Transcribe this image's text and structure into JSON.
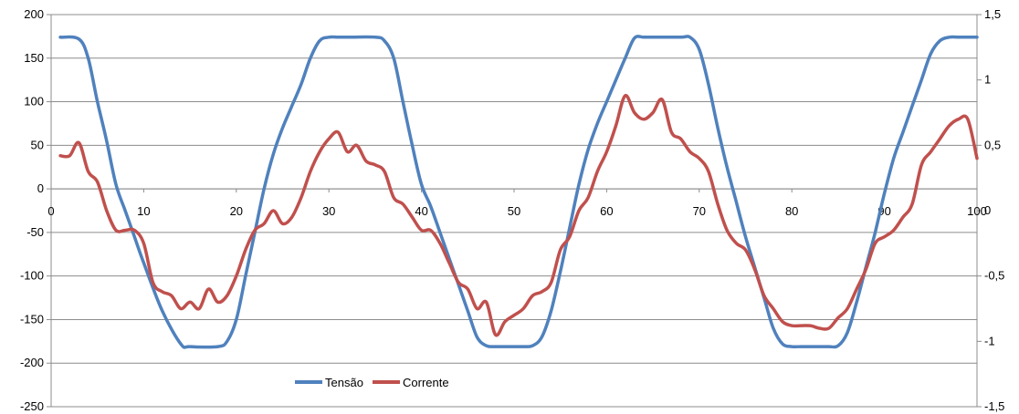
{
  "chart_data": {
    "type": "line",
    "title": "",
    "xlabel": "",
    "ylabel": "",
    "grid": true,
    "legend_position": "bottom-center",
    "x_ticks": [
      "0",
      "10",
      "20",
      "30",
      "40",
      "50",
      "60",
      "70",
      "80",
      "90",
      "100"
    ],
    "y_left_ticks": [
      "200",
      "150",
      "100",
      "50",
      "0",
      "-50",
      "-100",
      "-150",
      "-200",
      "-250"
    ],
    "y_right_ticks": [
      "1,5",
      "1",
      "0,5",
      "0",
      "-0,5",
      "-1",
      "-1,5"
    ],
    "xlim": [
      0,
      100
    ],
    "ylim_left": [
      -250,
      200
    ],
    "ylim_right": [
      -1.5,
      1.5
    ],
    "series": [
      {
        "name": "Tensão",
        "axis": "left",
        "color": "#4F81BD",
        "x": [
          1,
          3,
          4,
          5,
          6,
          7,
          8,
          9,
          10,
          12,
          14,
          15,
          18,
          19,
          20,
          21,
          22,
          23,
          24,
          25,
          26,
          27,
          28,
          29,
          30,
          31,
          32,
          35,
          36,
          37,
          38,
          39,
          40,
          41,
          42,
          43,
          44,
          45,
          46,
          47,
          48,
          49,
          50,
          51,
          52,
          53,
          54,
          55,
          56,
          57,
          58,
          59,
          60,
          61,
          62,
          63,
          64,
          65,
          68,
          69,
          70,
          71,
          72,
          73,
          74,
          75,
          76,
          77,
          78,
          79,
          80,
          81,
          82,
          83,
          84,
          85,
          86,
          87,
          88,
          89,
          90,
          91,
          92,
          93,
          94,
          95,
          96,
          97,
          98,
          99,
          100
        ],
        "values": [
          174,
          172,
          150,
          100,
          55,
          5,
          -25,
          -55,
          -85,
          -140,
          -178,
          -181,
          -181,
          -175,
          -150,
          -100,
          -50,
          0,
          40,
          70,
          95,
          120,
          150,
          170,
          174,
          174,
          174,
          174,
          170,
          150,
          100,
          50,
          5,
          -20,
          -50,
          -80,
          -110,
          -140,
          -170,
          -180,
          -181,
          -181,
          -181,
          -181,
          -180,
          -170,
          -140,
          -95,
          -45,
          5,
          45,
          75,
          100,
          125,
          150,
          173,
          174,
          174,
          174,
          174,
          160,
          120,
          70,
          25,
          -15,
          -55,
          -90,
          -125,
          -160,
          -178,
          -181,
          -181,
          -181,
          -181,
          -181,
          -180,
          -165,
          -130,
          -90,
          -50,
          -5,
          35,
          65,
          95,
          125,
          155,
          170,
          174,
          174,
          174,
          174
        ]
      },
      {
        "name": "Corrente",
        "axis": "right",
        "color": "#C0504D",
        "x": [
          1,
          2,
          3,
          4,
          5,
          6,
          7,
          8,
          9,
          10,
          11,
          12,
          13,
          14,
          15,
          16,
          17,
          18,
          19,
          20,
          21,
          22,
          23,
          24,
          25,
          26,
          27,
          28,
          29,
          30,
          31,
          32,
          33,
          34,
          35,
          36,
          37,
          38,
          39,
          40,
          41,
          42,
          43,
          44,
          45,
          46,
          47,
          48,
          49,
          50,
          51,
          52,
          53,
          54,
          55,
          56,
          57,
          58,
          59,
          60,
          61,
          62,
          63,
          64,
          65,
          66,
          67,
          68,
          69,
          70,
          71,
          72,
          73,
          74,
          75,
          76,
          77,
          78,
          79,
          80,
          81,
          82,
          83,
          84,
          85,
          86,
          87,
          88,
          89,
          90,
          91,
          92,
          93,
          94,
          95,
          96,
          97,
          98,
          99,
          100
        ],
        "values": [
          0.42,
          0.42,
          0.52,
          0.3,
          0.22,
          0.0,
          -0.15,
          -0.15,
          -0.15,
          -0.25,
          -0.55,
          -0.62,
          -0.65,
          -0.75,
          -0.7,
          -0.75,
          -0.6,
          -0.7,
          -0.65,
          -0.5,
          -0.3,
          -0.15,
          -0.1,
          0.0,
          -0.1,
          -0.05,
          0.1,
          0.3,
          0.45,
          0.55,
          0.6,
          0.45,
          0.5,
          0.38,
          0.35,
          0.3,
          0.1,
          0.05,
          -0.05,
          -0.15,
          -0.15,
          -0.25,
          -0.4,
          -0.55,
          -0.6,
          -0.75,
          -0.7,
          -0.95,
          -0.85,
          -0.8,
          -0.75,
          -0.65,
          -0.62,
          -0.55,
          -0.3,
          -0.2,
          0.0,
          0.1,
          0.3,
          0.45,
          0.65,
          0.88,
          0.75,
          0.7,
          0.75,
          0.85,
          0.6,
          0.55,
          0.45,
          0.4,
          0.3,
          0.05,
          -0.15,
          -0.25,
          -0.3,
          -0.45,
          -0.65,
          -0.75,
          -0.85,
          -0.88,
          -0.88,
          -0.88,
          -0.9,
          -0.9,
          -0.82,
          -0.75,
          -0.6,
          -0.45,
          -0.25,
          -0.2,
          -0.15,
          -0.05,
          0.05,
          0.35,
          0.45,
          0.55,
          0.65,
          0.7,
          0.7,
          0.4
        ]
      }
    ]
  }
}
